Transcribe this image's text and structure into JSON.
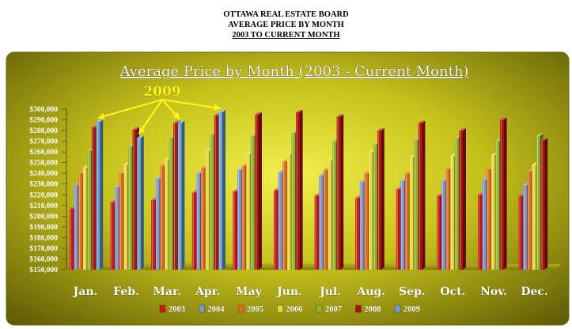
{
  "header": {
    "line1": "OTTAWA REAL ESTATE BOARD",
    "line2": "AVERAGE PRICE BY MONTH",
    "line3": "2003 TO CURRENT MONTH"
  },
  "chart_data": {
    "type": "bar",
    "title": "Average Price by Month (2003 - Current Month)",
    "annotation": "2009",
    "categories": [
      "Jan.",
      "Feb.",
      "Mar.",
      "Apr.",
      "May",
      "Jun.",
      "Jul.",
      "Aug.",
      "Sep.",
      "Oct.",
      "Nov.",
      "Dec."
    ],
    "y_ticks": [
      "$150,000",
      "$160,000",
      "$170,000",
      "$180,000",
      "$190,000",
      "$200,000",
      "$210,000",
      "$220,000",
      "$230,000",
      "$240,000",
      "$250,000",
      "$260,000",
      "$270,000",
      "$280,000",
      "$290,000",
      "$300,000"
    ],
    "ylim": [
      150000,
      300000
    ],
    "grid": false,
    "legend_position": "bottom",
    "series": [
      {
        "name": "2003",
        "color": "#cc1414",
        "values": [
          207000,
          213000,
          215000,
          222000,
          223000,
          224000,
          219000,
          217000,
          225000,
          219000,
          220000,
          219000
        ]
      },
      {
        "name": "2004",
        "color": "#7b96d6",
        "values": [
          229000,
          227000,
          235000,
          240000,
          243000,
          241000,
          238000,
          232000,
          233000,
          233000,
          234000,
          229000
        ]
      },
      {
        "name": "2005",
        "color": "#e06a1c",
        "values": [
          240000,
          240000,
          247000,
          245000,
          247000,
          251000,
          243000,
          240000,
          240000,
          244000,
          244000,
          242000
        ]
      },
      {
        "name": "2006",
        "color": "#e6d73a",
        "values": [
          245000,
          248000,
          253000,
          261000,
          258000,
          258000,
          252000,
          260000,
          255000,
          256000,
          257000,
          248000
        ]
      },
      {
        "name": "2007",
        "color": "#8fb52a",
        "values": [
          261000,
          265000,
          273000,
          276000,
          275000,
          278000,
          270000,
          267000,
          271000,
          273000,
          270000,
          275000
        ]
      },
      {
        "name": "2008",
        "color": "#b0100c",
        "values": [
          283000,
          281000,
          287000,
          294000,
          295000,
          297000,
          293000,
          280000,
          287000,
          280000,
          290000,
          271000
        ]
      },
      {
        "name": "2009",
        "color": "#6aa0d8",
        "values": [
          288000,
          273000,
          287000,
          297000,
          null,
          null,
          null,
          null,
          null,
          null,
          null,
          null
        ]
      }
    ]
  }
}
